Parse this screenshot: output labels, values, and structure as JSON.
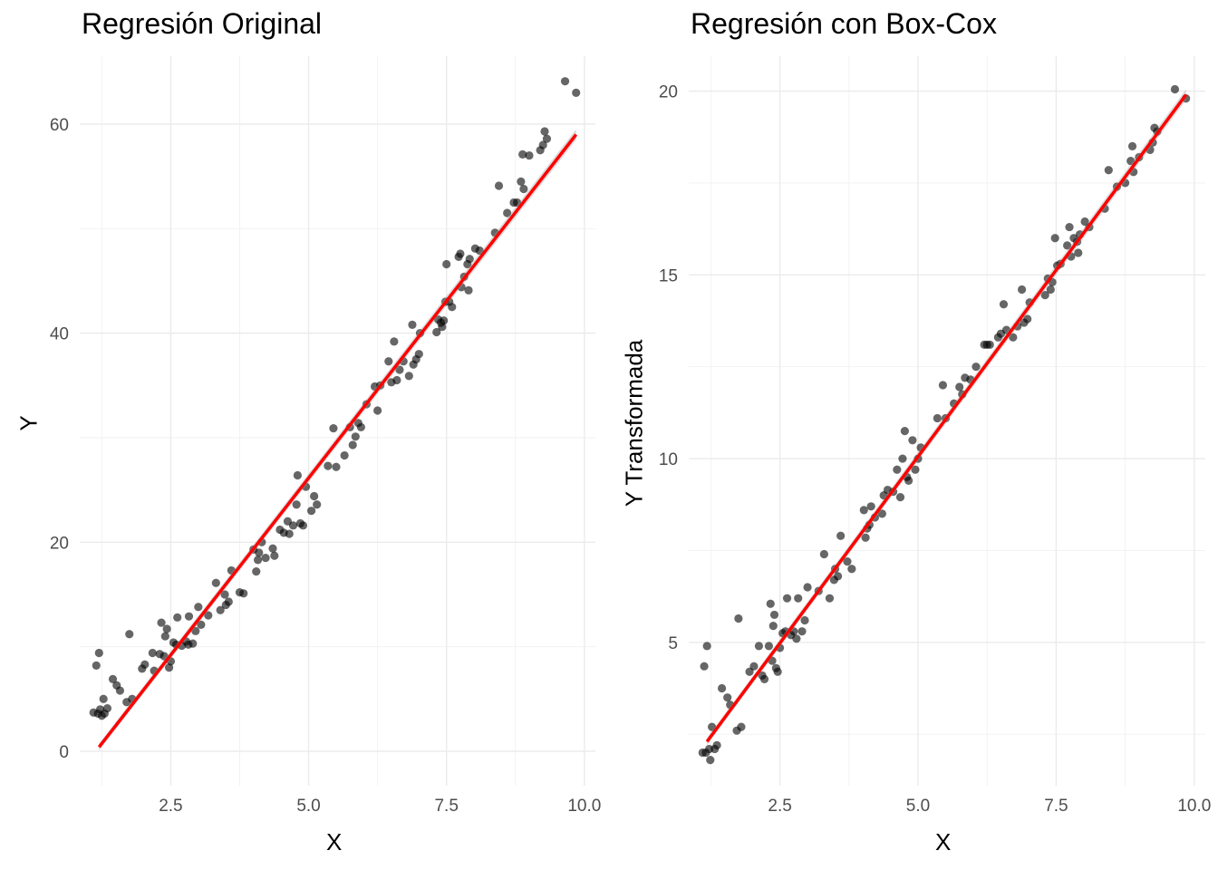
{
  "chart_data": [
    {
      "type": "scatter",
      "title": "Regresión Original",
      "xlabel": "X",
      "ylabel": "Y",
      "xlim": [
        0.85,
        10.2
      ],
      "ylim": [
        -3.3,
        66.5
      ],
      "x_ticks": [
        2.5,
        5.0,
        7.5,
        10.0
      ],
      "x_tick_labels": [
        "2.5",
        "5.0",
        "7.5",
        "10.0"
      ],
      "y_ticks": [
        0,
        20,
        40,
        60
      ],
      "y_tick_labels": [
        "0",
        "20",
        "40",
        "60"
      ],
      "grid": true,
      "point_color": "#000000",
      "fit_line": {
        "color": "#ff0000",
        "x": [
          1.2,
          9.85
        ],
        "y": [
          0.4,
          59.0
        ]
      },
      "points": [
        [
          1.1,
          3.7
        ],
        [
          1.15,
          8.2
        ],
        [
          1.18,
          3.6
        ],
        [
          1.2,
          9.4
        ],
        [
          1.22,
          4.0
        ],
        [
          1.25,
          3.4
        ],
        [
          1.28,
          5.0
        ],
        [
          1.3,
          3.6
        ],
        [
          1.35,
          4.1
        ],
        [
          1.45,
          6.9
        ],
        [
          1.52,
          6.3
        ],
        [
          1.58,
          5.8
        ],
        [
          1.7,
          4.7
        ],
        [
          1.75,
          11.2
        ],
        [
          1.8,
          5.0
        ],
        [
          1.98,
          7.9
        ],
        [
          2.03,
          8.3
        ],
        [
          2.17,
          9.4
        ],
        [
          2.2,
          7.7
        ],
        [
          2.3,
          9.3
        ],
        [
          2.33,
          12.3
        ],
        [
          2.38,
          9.1
        ],
        [
          2.4,
          11.0
        ],
        [
          2.43,
          11.7
        ],
        [
          2.47,
          8.0
        ],
        [
          2.5,
          8.6
        ],
        [
          2.55,
          10.4
        ],
        [
          2.6,
          10.2
        ],
        [
          2.62,
          12.8
        ],
        [
          2.7,
          10.1
        ],
        [
          2.78,
          10.5
        ],
        [
          2.82,
          10.2
        ],
        [
          2.83,
          12.9
        ],
        [
          2.9,
          10.3
        ],
        [
          2.95,
          11.5
        ],
        [
          3.0,
          13.8
        ],
        [
          3.05,
          12.1
        ],
        [
          3.18,
          13.0
        ],
        [
          3.32,
          16.1
        ],
        [
          3.4,
          13.5
        ],
        [
          3.48,
          15.0
        ],
        [
          3.5,
          14.0
        ],
        [
          3.55,
          14.3
        ],
        [
          3.6,
          17.3
        ],
        [
          3.75,
          15.2
        ],
        [
          3.82,
          15.1
        ],
        [
          4.0,
          19.3
        ],
        [
          4.05,
          17.2
        ],
        [
          4.08,
          18.3
        ],
        [
          4.1,
          19.0
        ],
        [
          4.15,
          20.0
        ],
        [
          4.22,
          18.5
        ],
        [
          4.35,
          19.4
        ],
        [
          4.38,
          18.7
        ],
        [
          4.48,
          21.2
        ],
        [
          4.55,
          20.9
        ],
        [
          4.62,
          22.0
        ],
        [
          4.65,
          20.8
        ],
        [
          4.72,
          21.6
        ],
        [
          4.78,
          23.6
        ],
        [
          4.8,
          26.4
        ],
        [
          4.85,
          21.8
        ],
        [
          4.9,
          21.6
        ],
        [
          4.95,
          25.3
        ],
        [
          5.05,
          23.0
        ],
        [
          5.1,
          24.4
        ],
        [
          5.15,
          23.6
        ],
        [
          5.35,
          27.3
        ],
        [
          5.45,
          30.9
        ],
        [
          5.5,
          27.2
        ],
        [
          5.65,
          28.3
        ],
        [
          5.75,
          31.0
        ],
        [
          5.8,
          29.3
        ],
        [
          5.85,
          30.1
        ],
        [
          5.9,
          31.4
        ],
        [
          5.95,
          31.0
        ],
        [
          6.05,
          33.2
        ],
        [
          6.2,
          34.9
        ],
        [
          6.25,
          32.6
        ],
        [
          6.3,
          35.0
        ],
        [
          6.45,
          37.3
        ],
        [
          6.5,
          35.3
        ],
        [
          6.55,
          39.2
        ],
        [
          6.6,
          35.5
        ],
        [
          6.65,
          36.5
        ],
        [
          6.72,
          37.3
        ],
        [
          6.82,
          35.9
        ],
        [
          6.88,
          40.8
        ],
        [
          6.9,
          37.0
        ],
        [
          6.95,
          37.5
        ],
        [
          7.0,
          38.0
        ],
        [
          7.02,
          40.0
        ],
        [
          7.32,
          40.1
        ],
        [
          7.35,
          41.3
        ],
        [
          7.4,
          41.0
        ],
        [
          7.42,
          40.6
        ],
        [
          7.45,
          41.2
        ],
        [
          7.48,
          43.0
        ],
        [
          7.5,
          46.6
        ],
        [
          7.55,
          43.0
        ],
        [
          7.6,
          42.5
        ],
        [
          7.72,
          47.3
        ],
        [
          7.75,
          47.6
        ],
        [
          7.77,
          44.4
        ],
        [
          7.82,
          45.4
        ],
        [
          7.88,
          46.6
        ],
        [
          7.9,
          44.1
        ],
        [
          7.92,
          47.1
        ],
        [
          8.02,
          48.1
        ],
        [
          8.1,
          47.9
        ],
        [
          8.38,
          49.6
        ],
        [
          8.45,
          54.1
        ],
        [
          8.6,
          51.5
        ],
        [
          8.72,
          52.5
        ],
        [
          8.78,
          52.5
        ],
        [
          8.85,
          54.5
        ],
        [
          8.88,
          57.1
        ],
        [
          8.9,
          53.8
        ],
        [
          9.0,
          57.0
        ],
        [
          9.2,
          57.5
        ],
        [
          9.25,
          58.0
        ],
        [
          9.28,
          59.3
        ],
        [
          9.32,
          58.6
        ],
        [
          9.65,
          64.1
        ],
        [
          9.85,
          63.0
        ]
      ]
    },
    {
      "type": "scatter",
      "title": "Regresión con Box-Cox",
      "xlabel": "X",
      "ylabel": "Y Transformada",
      "xlim": [
        0.85,
        10.2
      ],
      "ylim": [
        1.1,
        20.95
      ],
      "x_ticks": [
        2.5,
        5.0,
        7.5,
        10.0
      ],
      "x_tick_labels": [
        "2.5",
        "5.0",
        "7.5",
        "10.0"
      ],
      "y_ticks": [
        5,
        10,
        15,
        20
      ],
      "y_tick_labels": [
        "5",
        "10",
        "15",
        "20"
      ],
      "grid": true,
      "point_color": "#000000",
      "fit_line": {
        "color": "#ff0000",
        "x": [
          1.18,
          9.85
        ],
        "y": [
          2.3,
          19.9
        ]
      },
      "points": [
        [
          1.1,
          2.0
        ],
        [
          1.13,
          4.35
        ],
        [
          1.16,
          2.0
        ],
        [
          1.18,
          4.9
        ],
        [
          1.22,
          2.1
        ],
        [
          1.24,
          1.8
        ],
        [
          1.27,
          2.7
        ],
        [
          1.32,
          2.1
        ],
        [
          1.36,
          2.2
        ],
        [
          1.45,
          3.75
        ],
        [
          1.55,
          3.5
        ],
        [
          1.6,
          3.3
        ],
        [
          1.72,
          2.6
        ],
        [
          1.75,
          5.65
        ],
        [
          1.8,
          2.7
        ],
        [
          1.95,
          4.2
        ],
        [
          2.03,
          4.35
        ],
        [
          2.12,
          4.9
        ],
        [
          2.18,
          4.1
        ],
        [
          2.22,
          4.0
        ],
        [
          2.3,
          4.9
        ],
        [
          2.33,
          6.05
        ],
        [
          2.36,
          4.5
        ],
        [
          2.38,
          5.45
        ],
        [
          2.4,
          5.75
        ],
        [
          2.43,
          4.3
        ],
        [
          2.46,
          4.2
        ],
        [
          2.5,
          4.85
        ],
        [
          2.55,
          5.25
        ],
        [
          2.6,
          5.3
        ],
        [
          2.63,
          6.2
        ],
        [
          2.7,
          5.2
        ],
        [
          2.75,
          5.3
        ],
        [
          2.8,
          5.1
        ],
        [
          2.83,
          6.2
        ],
        [
          2.9,
          5.3
        ],
        [
          2.95,
          5.6
        ],
        [
          3.0,
          6.5
        ],
        [
          3.2,
          6.4
        ],
        [
          3.3,
          7.4
        ],
        [
          3.4,
          6.2
        ],
        [
          3.48,
          6.7
        ],
        [
          3.5,
          7.0
        ],
        [
          3.55,
          6.8
        ],
        [
          3.6,
          7.9
        ],
        [
          3.72,
          7.2
        ],
        [
          3.8,
          7.0
        ],
        [
          4.02,
          8.6
        ],
        [
          4.05,
          7.85
        ],
        [
          4.08,
          8.1
        ],
        [
          4.12,
          8.2
        ],
        [
          4.15,
          8.7
        ],
        [
          4.22,
          8.4
        ],
        [
          4.35,
          8.5
        ],
        [
          4.38,
          9.0
        ],
        [
          4.45,
          9.15
        ],
        [
          4.55,
          9.1
        ],
        [
          4.62,
          9.7
        ],
        [
          4.68,
          8.95
        ],
        [
          4.72,
          10.0
        ],
        [
          4.76,
          10.75
        ],
        [
          4.8,
          9.5
        ],
        [
          4.83,
          9.4
        ],
        [
          4.9,
          10.5
        ],
        [
          4.95,
          9.7
        ],
        [
          5.0,
          10.0
        ],
        [
          5.05,
          10.3
        ],
        [
          5.35,
          11.1
        ],
        [
          5.45,
          12.0
        ],
        [
          5.5,
          11.1
        ],
        [
          5.65,
          11.5
        ],
        [
          5.75,
          11.95
        ],
        [
          5.8,
          11.75
        ],
        [
          5.85,
          12.2
        ],
        [
          5.95,
          12.15
        ],
        [
          6.05,
          12.5
        ],
        [
          6.2,
          13.1
        ],
        [
          6.25,
          13.1
        ],
        [
          6.3,
          13.1
        ],
        [
          6.45,
          13.3
        ],
        [
          6.5,
          13.4
        ],
        [
          6.55,
          14.2
        ],
        [
          6.6,
          13.5
        ],
        [
          6.72,
          13.3
        ],
        [
          6.8,
          13.6
        ],
        [
          6.88,
          14.6
        ],
        [
          6.92,
          13.7
        ],
        [
          6.98,
          13.8
        ],
        [
          7.02,
          14.25
        ],
        [
          7.3,
          14.45
        ],
        [
          7.35,
          14.9
        ],
        [
          7.4,
          14.6
        ],
        [
          7.43,
          14.8
        ],
        [
          7.48,
          16.0
        ],
        [
          7.52,
          15.25
        ],
        [
          7.58,
          15.3
        ],
        [
          7.7,
          15.8
        ],
        [
          7.74,
          16.3
        ],
        [
          7.77,
          15.5
        ],
        [
          7.82,
          16.0
        ],
        [
          7.88,
          15.9
        ],
        [
          7.9,
          15.6
        ],
        [
          7.93,
          16.1
        ],
        [
          8.02,
          16.45
        ],
        [
          8.1,
          16.3
        ],
        [
          8.38,
          16.8
        ],
        [
          8.45,
          17.85
        ],
        [
          8.6,
          17.4
        ],
        [
          8.75,
          17.5
        ],
        [
          8.85,
          18.1
        ],
        [
          8.88,
          18.5
        ],
        [
          8.9,
          17.8
        ],
        [
          9.0,
          18.2
        ],
        [
          9.2,
          18.4
        ],
        [
          9.25,
          18.6
        ],
        [
          9.28,
          19.0
        ],
        [
          9.33,
          18.9
        ],
        [
          9.65,
          20.05
        ],
        [
          9.85,
          19.8
        ]
      ]
    }
  ]
}
